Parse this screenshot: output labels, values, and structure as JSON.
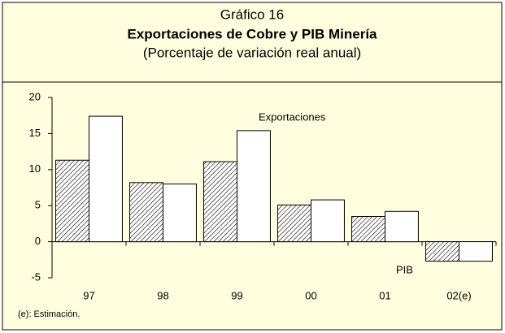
{
  "chart_data": {
    "type": "bar",
    "title": "Gráfico 16",
    "subtitle": "Exportaciones de Cobre y PIB Minería",
    "y_label": "(Porcentaje de variación real anual)",
    "footnote": "(e): Estimación.",
    "categories": [
      "97",
      "98",
      "99",
      "00",
      "01",
      "02(e)"
    ],
    "series": [
      {
        "name": "PIB",
        "color": "#000000",
        "hatch": true,
        "values": [
          11.3,
          8.2,
          11.1,
          5.1,
          3.5,
          -2.7
        ]
      },
      {
        "name": "Exportaciones",
        "color": "#ffffff",
        "hatch": false,
        "values": [
          17.4,
          8.0,
          15.4,
          5.8,
          4.2,
          -2.7
        ]
      }
    ],
    "ylim": [
      -5,
      20
    ],
    "yticks": [
      -5,
      0,
      5,
      10,
      15,
      20
    ],
    "background": "#ffffe0"
  }
}
